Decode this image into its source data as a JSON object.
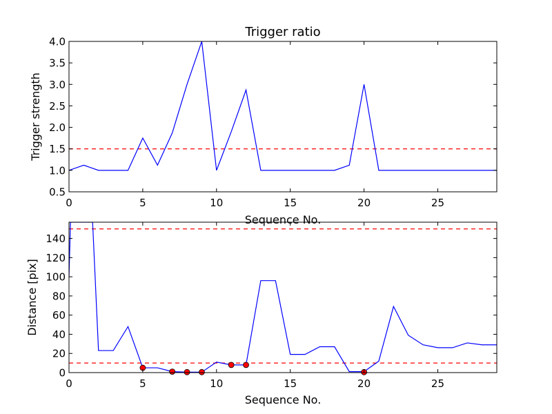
{
  "chart_data": [
    {
      "type": "line",
      "title": "Trigger ratio",
      "xlabel": "Sequence No.",
      "ylabel": "Trigger strength",
      "xlim": [
        0,
        29
      ],
      "ylim": [
        0.5,
        4.0
      ],
      "xticks": [
        0,
        5,
        10,
        15,
        20,
        25
      ],
      "xtick_labels": [
        "0",
        "5",
        "10",
        "15",
        "20",
        "25"
      ],
      "yticks": [
        0.5,
        1.0,
        1.5,
        2.0,
        2.5,
        3.0,
        3.5,
        4.0
      ],
      "ytick_labels": [
        "0.5",
        "1.0",
        "1.5",
        "2.0",
        "2.5",
        "3.0",
        "3.5",
        "4.0"
      ],
      "series": [
        {
          "color": "#0000ff",
          "x": [
            0,
            1,
            2,
            3,
            4,
            5,
            6,
            7,
            8,
            9,
            10,
            11,
            12,
            13,
            14,
            15,
            16,
            17,
            18,
            19,
            20,
            21,
            22,
            23,
            24,
            25,
            26,
            27,
            28,
            29
          ],
          "values": [
            1.0,
            1.12,
            1.0,
            1.0,
            1.0,
            1.75,
            1.12,
            1.87,
            3.0,
            4.0,
            1.0,
            1.9,
            2.87,
            1.0,
            1.0,
            1.0,
            1.0,
            1.0,
            1.0,
            1.12,
            3.0,
            1.0,
            1.0,
            1.0,
            1.0,
            1.0,
            1.0,
            1.0,
            1.0,
            1.0
          ]
        }
      ],
      "hlines": [
        {
          "y": 1.5,
          "color": "#ff0000",
          "style": "dashed"
        }
      ],
      "grid": false
    },
    {
      "type": "line",
      "title": "",
      "xlabel": "Sequence No.",
      "ylabel": "Distance [pix]",
      "xlim": [
        0,
        29
      ],
      "ylim": [
        0,
        157
      ],
      "xticks": [
        0,
        5,
        10,
        15,
        20,
        25
      ],
      "xtick_labels": [
        "0",
        "5",
        "10",
        "15",
        "20",
        "25"
      ],
      "yticks": [
        0,
        20,
        40,
        60,
        80,
        100,
        120,
        140
      ],
      "ytick_labels": [
        "0",
        "20",
        "40",
        "60",
        "80",
        "100",
        "120",
        "140"
      ],
      "series": [
        {
          "color": "#0000ff",
          "x": [
            0,
            0.1,
            1.6,
            2,
            3,
            4,
            5,
            6,
            7,
            8,
            9,
            10,
            11,
            12,
            13,
            14,
            15,
            16,
            17,
            18,
            19,
            20,
            21,
            22,
            23,
            24,
            25,
            26,
            27,
            28,
            29
          ],
          "values": [
            100,
            157,
            157,
            23,
            23,
            48,
            5,
            5,
            1,
            0.5,
            0.5,
            11,
            8,
            8,
            96,
            96,
            19,
            19,
            27,
            27,
            1,
            1,
            12,
            69,
            39,
            29,
            26,
            26,
            31,
            29,
            29
          ]
        }
      ],
      "markers": {
        "color": "#ff0000",
        "edge": "#000000",
        "x": [
          5,
          7,
          8,
          9,
          11,
          12,
          20
        ],
        "values": [
          5,
          1,
          0.5,
          0.5,
          8,
          8,
          0.5
        ]
      },
      "hlines": [
        {
          "y": 10,
          "color": "#ff0000",
          "style": "dashed"
        },
        {
          "y": 150,
          "color": "#ff0000",
          "style": "dashed"
        }
      ],
      "grid": false
    }
  ]
}
